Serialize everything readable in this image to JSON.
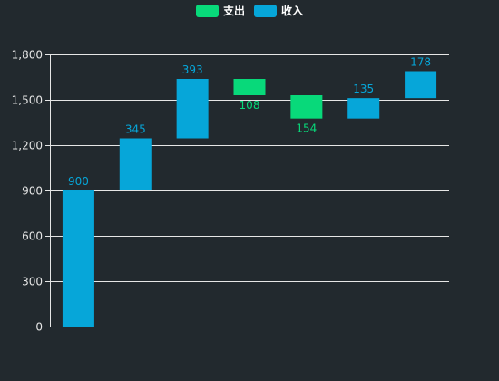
{
  "legend": [
    {
      "label": "支出",
      "color": "#08d97a"
    },
    {
      "label": "收入",
      "color": "#06a6d9"
    }
  ],
  "chart_data": {
    "type": "bar",
    "subtype": "waterfall",
    "title": "",
    "xlabel": "",
    "ylabel": "",
    "ylim": [
      0,
      1800
    ],
    "yticks": [
      0,
      300,
      600,
      900,
      1200,
      1500,
      1800
    ],
    "ytick_labels": [
      "0",
      "300",
      "600",
      "900",
      "1,200",
      "1,500",
      "1,800"
    ],
    "grid": true,
    "legend_position": "top-center",
    "series": [
      {
        "name": "支出",
        "color": "#08d97a",
        "bars": [
          {
            "index": 3,
            "base": 1530,
            "value": 108,
            "label": "108"
          },
          {
            "index": 4,
            "base": 1376,
            "value": 154,
            "label": "154"
          }
        ]
      },
      {
        "name": "收入",
        "color": "#06a6d9",
        "bars": [
          {
            "index": 0,
            "base": 0,
            "value": 900,
            "label": "900"
          },
          {
            "index": 1,
            "base": 900,
            "value": 345,
            "label": "345"
          },
          {
            "index": 2,
            "base": 1245,
            "value": 393,
            "label": "393"
          },
          {
            "index": 5,
            "base": 1376,
            "value": 135,
            "label": "135"
          },
          {
            "index": 6,
            "base": 1511,
            "value": 178,
            "label": "178"
          }
        ]
      }
    ],
    "category_count": 7
  }
}
